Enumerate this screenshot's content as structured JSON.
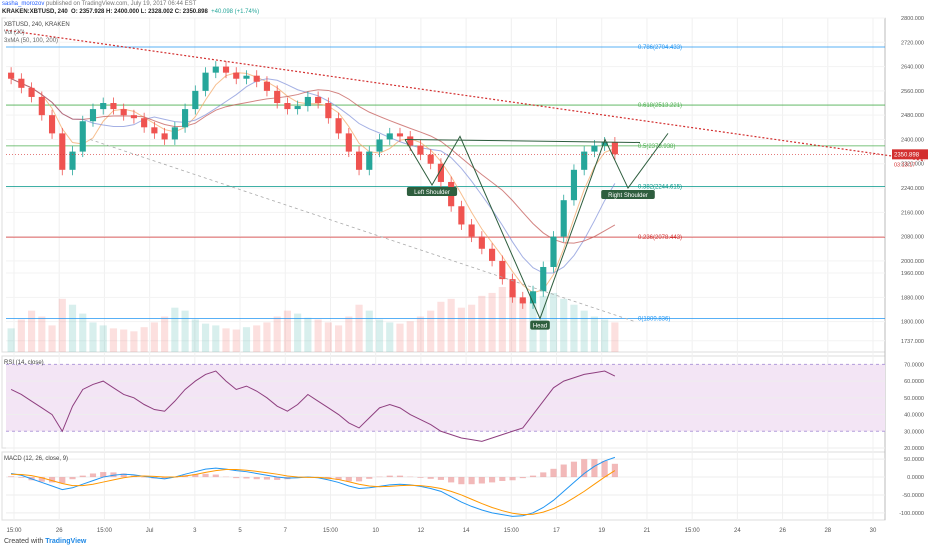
{
  "header": {
    "author": "sasha_morozov",
    "published": "published on TradingView.com, July 19, 2017 06:44 EST",
    "symbol": "KRAKEN:XBTUSD, 240",
    "ohlc": "O: 2357.928  H: 2400.000  L: 2328.002  C: 2350.898",
    "change": "+40.098 (+1.74%)",
    "ticker_line": "XBTUSD, 240, KRAKEN",
    "vol_label": "Vol (20)",
    "ma_label": "3xMA (50, 100, 200)"
  },
  "footer": {
    "created_with": "Created with",
    "brand": "TradingView"
  },
  "colors": {
    "bull": "#26a69a",
    "bear": "#ef5350",
    "fib": "#2196f3",
    "trend": "#d32f2f",
    "pattern": "#2e5e3e",
    "rsi_line": "#8e3f7f",
    "rsi_band": "#f3e5f5",
    "macd": "#2196f3",
    "signal": "#ff9800"
  },
  "chart_data": [
    {
      "type": "candlestick",
      "title": "XBTUSD, 240, KRAKEN",
      "ylim": [
        1700,
        2800
      ],
      "y_ticks": [
        "2800.000",
        "2720.000",
        "2640.000",
        "2560.000",
        "2480.000",
        "2400.000",
        "2320.000",
        "2240.000",
        "2160.000",
        "2080.000",
        "2000.000",
        "1960.000",
        "1880.000",
        "1800.000",
        "1737.000"
      ],
      "x_ticks": [
        "15:00",
        "26",
        "15:00",
        "Jul",
        "3",
        "5",
        "7",
        "15:00",
        "10",
        "12",
        "14",
        "15:00",
        "17",
        "19",
        "21",
        "15:00",
        "24",
        "26",
        "28",
        "30"
      ],
      "close": [
        2600,
        2570,
        2540,
        2480,
        2420,
        2300,
        2360,
        2460,
        2500,
        2520,
        2500,
        2480,
        2470,
        2440,
        2420,
        2400,
        2440,
        2500,
        2560,
        2620,
        2640,
        2620,
        2600,
        2610,
        2590,
        2560,
        2520,
        2500,
        2510,
        2540,
        2520,
        2470,
        2420,
        2360,
        2300,
        2360,
        2400,
        2420,
        2410,
        2380,
        2350,
        2320,
        2260,
        2180,
        2120,
        2080,
        2040,
        2000,
        1940,
        1880,
        1860,
        1900,
        1980,
        2080,
        2200,
        2300,
        2360,
        2380,
        2390,
        2351
      ],
      "current_price_label": "2350.898",
      "current_time_label": "03:13:17",
      "fib_levels": [
        {
          "label": "0.786(2704.433)",
          "value": 2704.433
        },
        {
          "label": "0.618(2513.221)",
          "value": 2513.221
        },
        {
          "label": "0.5(2378.938)",
          "value": 2378.938
        },
        {
          "label": "0.382(2244.615)",
          "value": 2244.615
        },
        {
          "label": "0.236(2078.443)",
          "value": 2078.443
        },
        {
          "label": "0(1809.836)",
          "value": 1809.836
        }
      ],
      "annotations": [
        "Left Shoulder",
        "Head",
        "Right Shoulder"
      ],
      "volume": [
        40,
        55,
        70,
        60,
        45,
        90,
        80,
        65,
        50,
        45,
        40,
        38,
        35,
        42,
        50,
        60,
        75,
        70,
        55,
        48,
        45,
        40,
        38,
        42,
        45,
        50,
        60,
        70,
        65,
        58,
        55,
        50,
        45,
        60,
        80,
        70,
        55,
        50,
        48,
        52,
        60,
        70,
        85,
        90,
        75,
        80,
        95,
        100,
        110,
        105,
        90,
        85,
        95,
        100,
        90,
        80,
        70,
        60,
        55,
        50
      ]
    },
    {
      "type": "line",
      "title": "RSI (14, close)",
      "ylim": [
        20,
        75
      ],
      "y_ticks": [
        "70.0000",
        "60.0000",
        "50.0000",
        "40.0000",
        "30.0000",
        "20.0000"
      ],
      "series": [
        {
          "values": [
            55,
            52,
            48,
            44,
            40,
            30,
            45,
            55,
            58,
            60,
            56,
            52,
            50,
            46,
            43,
            42,
            48,
            55,
            60,
            64,
            66,
            60,
            55,
            57,
            54,
            50,
            45,
            42,
            46,
            52,
            48,
            44,
            40,
            35,
            32,
            38,
            44,
            46,
            44,
            40,
            37,
            34,
            30,
            28,
            26,
            25,
            24,
            26,
            28,
            30,
            32,
            40,
            48,
            56,
            60,
            62,
            64,
            65,
            66,
            63
          ]
        }
      ]
    },
    {
      "type": "line",
      "title": "MACD (12, 26, close, 9)",
      "ylim": [
        -120,
        70
      ],
      "y_ticks": [
        "50.0000",
        "0.0000",
        "-50.0000",
        "-100.0000"
      ],
      "series": [
        {
          "name": "MACD",
          "values": [
            10,
            5,
            -5,
            -15,
            -25,
            -35,
            -30,
            -20,
            -10,
            0,
            5,
            8,
            6,
            2,
            -2,
            -5,
            0,
            8,
            15,
            22,
            25,
            22,
            18,
            15,
            10,
            5,
            0,
            -3,
            -2,
            0,
            -2,
            -8,
            -15,
            -25,
            -32,
            -30,
            -26,
            -22,
            -20,
            -22,
            -26,
            -32,
            -40,
            -55,
            -70,
            -82,
            -92,
            -100,
            -105,
            -110,
            -108,
            -100,
            -85,
            -65,
            -40,
            -15,
            10,
            30,
            45,
            55
          ]
        },
        {
          "name": "Signal",
          "values": [
            8,
            7,
            4,
            -2,
            -10,
            -18,
            -24,
            -24,
            -20,
            -14,
            -8,
            -2,
            2,
            3,
            2,
            0,
            0,
            3,
            7,
            13,
            18,
            21,
            21,
            19,
            16,
            12,
            8,
            3,
            0,
            -1,
            -1,
            -3,
            -7,
            -13,
            -20,
            -25,
            -27,
            -26,
            -24,
            -23,
            -24,
            -27,
            -32,
            -40,
            -50,
            -62,
            -74,
            -85,
            -94,
            -101,
            -105,
            -104,
            -98,
            -88,
            -75,
            -58,
            -40,
            -20,
            0,
            18
          ]
        }
      ],
      "histogram": [
        2,
        -2,
        -9,
        -13,
        -15,
        -17,
        -6,
        4,
        10,
        14,
        13,
        10,
        4,
        -1,
        -4,
        -5,
        0,
        5,
        8,
        9,
        7,
        1,
        -3,
        -4,
        -6,
        -7,
        -8,
        -6,
        -2,
        1,
        -1,
        -5,
        -8,
        -12,
        -12,
        -5,
        1,
        4,
        4,
        1,
        -2,
        -5,
        -8,
        -15,
        -20,
        -20,
        -18,
        -15,
        -11,
        -9,
        -3,
        4,
        13,
        23,
        35,
        43,
        50,
        50,
        45,
        37
      ]
    }
  ]
}
